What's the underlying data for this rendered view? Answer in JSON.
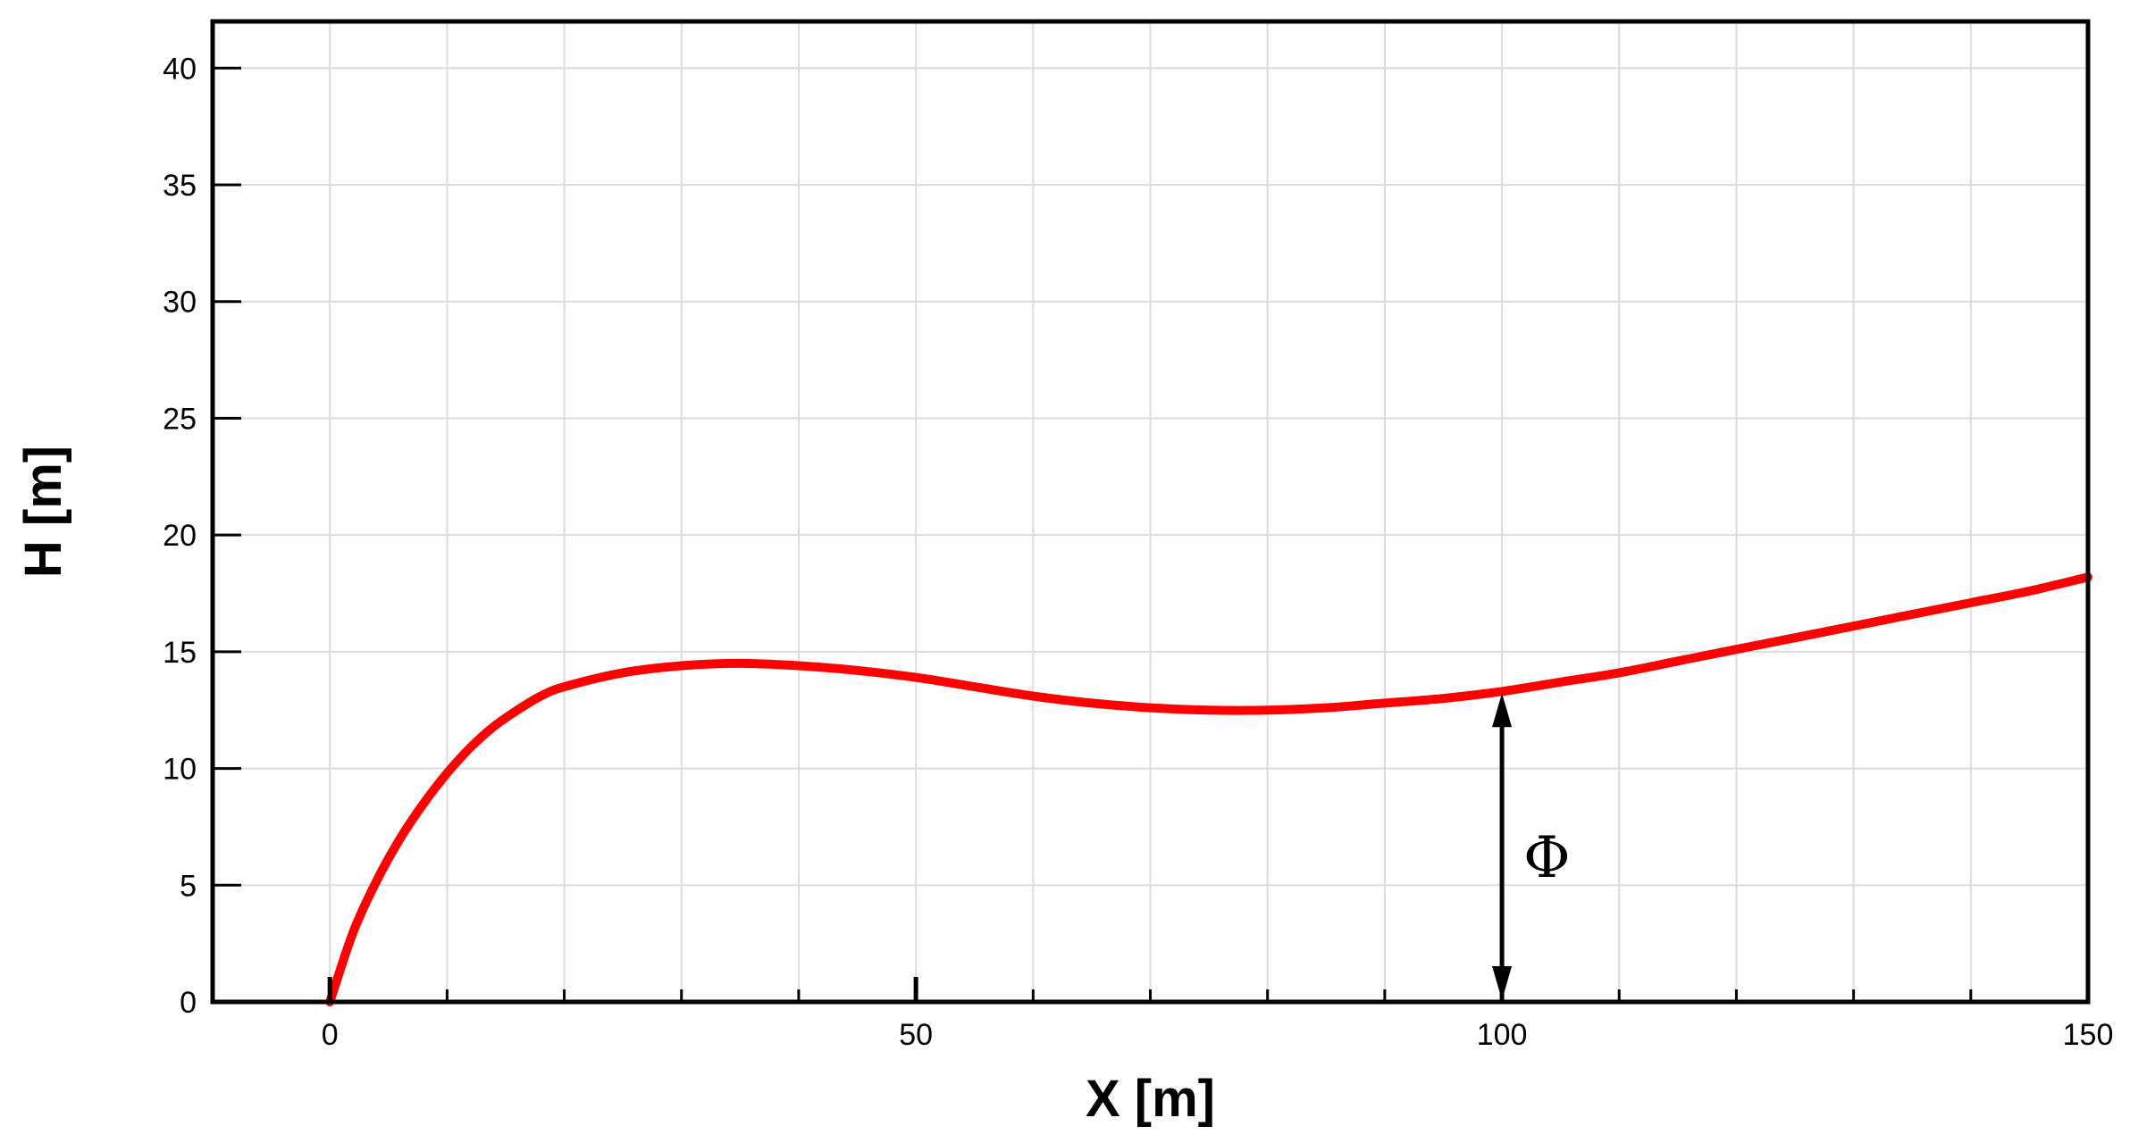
{
  "chart_data": {
    "type": "line",
    "title": "",
    "xlabel": "X [m]",
    "ylabel": "H [m]",
    "xlim": [
      -10,
      150
    ],
    "ylim": [
      0,
      42
    ],
    "grid": true,
    "legend": "none",
    "x_major_ticks": [
      0,
      50,
      100,
      150
    ],
    "x_minor_ticks": [
      10,
      20,
      30,
      40,
      60,
      70,
      80,
      90,
      110,
      120,
      130,
      140
    ],
    "y_ticks": [
      0,
      5,
      10,
      15,
      20,
      25,
      30,
      35,
      40
    ],
    "x_tick_labels": [
      "0",
      "50",
      "100",
      "150"
    ],
    "y_tick_labels": [
      "0",
      "5",
      "10",
      "15",
      "20",
      "25",
      "30",
      "35",
      "40"
    ],
    "series": [
      {
        "color": "#ff0000",
        "x": [
          0,
          2,
          4,
          6,
          8,
          10,
          12,
          14,
          16,
          18,
          20,
          25,
          30,
          35,
          40,
          45,
          50,
          55,
          60,
          65,
          70,
          75,
          80,
          85,
          90,
          95,
          100,
          105,
          110,
          115,
          120,
          125,
          130,
          135,
          140,
          145,
          150
        ],
        "y": [
          0,
          3.0,
          5.2,
          7.0,
          8.5,
          9.8,
          10.9,
          11.8,
          12.5,
          13.1,
          13.5,
          14.1,
          14.4,
          14.5,
          14.4,
          14.2,
          13.9,
          13.5,
          13.1,
          12.8,
          12.6,
          12.5,
          12.5,
          12.6,
          12.8,
          13.0,
          13.3,
          13.7,
          14.1,
          14.6,
          15.1,
          15.6,
          16.1,
          16.6,
          17.1,
          17.6,
          18.2
        ]
      }
    ],
    "annotation": {
      "label": "Φ",
      "x": 100,
      "y_from": 0,
      "y_to": 13.3
    }
  }
}
